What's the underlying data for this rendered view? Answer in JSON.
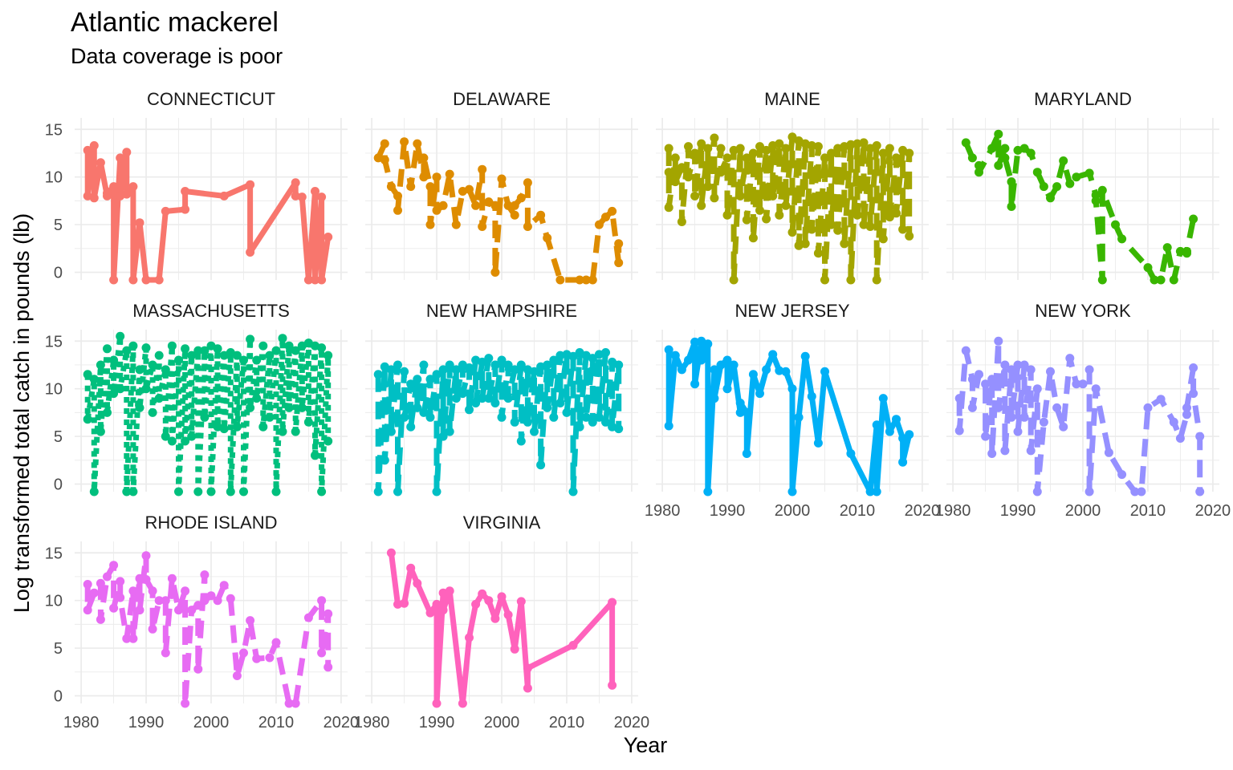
{
  "chart_data": {
    "type": "line",
    "title": "Atlantic mackerel",
    "subtitle": "Data coverage is poor",
    "xlabel": "Year",
    "ylabel": "Log transformed  total catch in pounds (lb)",
    "xlim": [
      1979,
      2021
    ],
    "ylim": [
      -0.8,
      16.2
    ],
    "x_ticks": [
      1980,
      1990,
      2000,
      2010,
      2020
    ],
    "y_ticks": [
      0,
      5,
      10,
      15
    ],
    "grid": true,
    "legend": "none",
    "markers": true,
    "panels": [
      {
        "name": "CONNECTICUT",
        "color": "#F8766D",
        "dash": "solid",
        "x": [
          1981,
          1981,
          1982,
          1982,
          1983,
          1984,
          1984,
          1985,
          1985,
          1986,
          1986,
          1987,
          1987,
          1988,
          1988,
          1989,
          1990,
          1992,
          1993,
          1996,
          1996,
          2002,
          2006,
          2006,
          2013,
          2013,
          2014,
          2015,
          2016,
          2016,
          2017,
          2017,
          2018
        ],
        "y": [
          12.8,
          8.0,
          13.3,
          7.8,
          11.5,
          8.0,
          8.3,
          9.0,
          -0.8,
          12.0,
          8.0,
          12.6,
          8.2,
          9.0,
          -0.8,
          5.2,
          -0.8,
          -0.8,
          6.4,
          6.6,
          8.5,
          8.0,
          9.2,
          2.1,
          9.4,
          8.0,
          7.9,
          -0.8,
          8.5,
          -0.8,
          7.9,
          -0.8,
          3.7
        ]
      },
      {
        "name": "DELAWARE",
        "color": "#DE8C00",
        "dash": "dashed",
        "x": [
          1981,
          1982,
          1982,
          1983,
          1984,
          1984,
          1985,
          1986,
          1987,
          1988,
          1988,
          1989,
          1989,
          1990,
          1990,
          1991,
          1992,
          1993,
          1994,
          1995,
          1996,
          1997,
          1997,
          1998,
          1999,
          1999,
          2000,
          2001,
          2002,
          2002,
          2003,
          2004,
          2004,
          2006,
          2007,
          2009,
          2012,
          2013,
          2014,
          2015,
          2016,
          2017,
          2018,
          2018
        ],
        "y": [
          12.0,
          13.5,
          11.8,
          9.0,
          8.0,
          6.5,
          13.7,
          9.0,
          13.5,
          10.0,
          12.0,
          9.0,
          5.0,
          10.0,
          6.5,
          7.0,
          10.3,
          5.0,
          8.5,
          8.7,
          7.0,
          10.8,
          4.8,
          7.4,
          7.0,
          0.0,
          9.8,
          7.0,
          6.0,
          7.0,
          7.8,
          9.4,
          4.8,
          6.0,
          3.6,
          -0.8,
          -0.8,
          -0.8,
          -0.8,
          5.0,
          5.8,
          6.4,
          1.0,
          3.0
        ]
      },
      {
        "name": "MAINE",
        "color": "#A3A500",
        "dash": "dashed",
        "x": [
          1981,
          1981,
          1981,
          1982,
          1982,
          1983,
          1983,
          1984,
          1984,
          1985,
          1985,
          1986,
          1986,
          1987,
          1987,
          1988,
          1988,
          1989,
          1989,
          1990,
          1990,
          1991,
          1991,
          1992,
          1992,
          1993,
          1993,
          1994,
          1994,
          1995,
          1995,
          1996,
          1996,
          1997,
          1997,
          1998,
          1998,
          1999,
          1999,
          2000,
          2000,
          2001,
          2001,
          2002,
          2002,
          2003,
          2003,
          2004,
          2004,
          2005,
          2005,
          2006,
          2006,
          2007,
          2007,
          2008,
          2008,
          2009,
          2009,
          2010,
          2010,
          2011,
          2011,
          2012,
          2012,
          2013,
          2013,
          2014,
          2014,
          2015,
          2015,
          2016,
          2016,
          2017,
          2017,
          2018,
          2018
        ],
        "y": [
          13.0,
          10.5,
          6.8,
          12.0,
          9.5,
          11.0,
          5.3,
          13.2,
          10.0,
          12.5,
          8.0,
          13.5,
          7.0,
          13.0,
          9.0,
          14.1,
          7.8,
          13.0,
          10.5,
          12.0,
          6.0,
          12.8,
          -0.8,
          13.0,
          8.0,
          12.0,
          5.5,
          12.5,
          3.6,
          13.2,
          6.5,
          12.8,
          5.6,
          13.3,
          8.0,
          13.5,
          6.0,
          13.0,
          7.0,
          14.2,
          4.2,
          13.8,
          2.8,
          13.5,
          3.0,
          13.3,
          4.5,
          13.2,
          2.0,
          12.0,
          -0.8,
          12.5,
          5.0,
          13.0,
          4.4,
          13.2,
          3.0,
          13.4,
          -0.8,
          13.5,
          6.0,
          13.6,
          5.0,
          13.0,
          4.8,
          13.3,
          -0.8,
          12.5,
          3.5,
          13.0,
          5.8,
          12.0,
          6.2,
          12.8,
          4.5,
          12.5,
          3.8
        ]
      },
      {
        "name": "MARYLAND",
        "color": "#39B600",
        "dash": "dashed",
        "x": [
          1982,
          1983,
          1984,
          1984,
          1986,
          1987,
          1987,
          1988,
          1988,
          1989,
          1989,
          1990,
          1991,
          1992,
          1993,
          1994,
          1995,
          1996,
          1997,
          1998,
          1999,
          2001,
          2002,
          2002,
          2003,
          2003,
          2005,
          2006,
          2010,
          2011,
          2012,
          2013,
          2014,
          2015,
          2016,
          2016,
          2017
        ],
        "y": [
          13.6,
          12.0,
          11.2,
          10.5,
          13.0,
          14.5,
          11.2,
          13.0,
          12.0,
          9.5,
          6.9,
          12.8,
          13.0,
          12.5,
          10.5,
          9.0,
          7.8,
          9.0,
          11.7,
          9.3,
          10.0,
          10.4,
          8.1,
          7.5,
          -0.8,
          8.6,
          5.0,
          3.5,
          0.5,
          -0.8,
          -0.8,
          2.6,
          -0.8,
          2.2,
          2.0,
          2.2,
          5.6
        ]
      },
      {
        "name": "MASSACHUSETTS",
        "color": "#00BF7D",
        "dash": "dotted",
        "x": [
          1981,
          1981,
          1982,
          1982,
          1983,
          1983,
          1984,
          1984,
          1985,
          1985,
          1986,
          1986,
          1987,
          1987,
          1988,
          1988,
          1989,
          1989,
          1990,
          1990,
          1991,
          1991,
          1992,
          1992,
          1993,
          1993,
          1994,
          1994,
          1995,
          1995,
          1996,
          1996,
          1997,
          1997,
          1998,
          1998,
          1999,
          1999,
          2000,
          2000,
          2001,
          2001,
          2002,
          2002,
          2003,
          2003,
          2004,
          2004,
          2005,
          2005,
          2006,
          2006,
          2007,
          2007,
          2008,
          2008,
          2009,
          2009,
          2010,
          2010,
          2011,
          2011,
          2012,
          2012,
          2013,
          2013,
          2014,
          2014,
          2015,
          2015,
          2016,
          2016,
          2017,
          2017,
          2018,
          2018
        ],
        "y": [
          11.5,
          6.8,
          11.0,
          -0.8,
          12.5,
          5.5,
          14.2,
          7.5,
          13.0,
          9.5,
          15.5,
          10.0,
          14.0,
          -0.8,
          14.5,
          -0.8,
          12.0,
          8.0,
          14.3,
          10.0,
          12.5,
          7.5,
          13.5,
          9.0,
          12.0,
          5.0,
          14.5,
          4.5,
          13.0,
          -0.8,
          14.2,
          4.5,
          13.5,
          5.0,
          14.0,
          -0.8,
          14.0,
          7.0,
          14.5,
          -0.8,
          14.2,
          6.0,
          13.5,
          5.8,
          13.8,
          -0.8,
          13.5,
          6.0,
          13.0,
          -0.8,
          15.2,
          8.0,
          13.0,
          9.0,
          14.5,
          6.0,
          13.5,
          7.0,
          14.0,
          -0.8,
          15.3,
          5.5,
          14.5,
          8.0,
          14.0,
          5.5,
          14.5,
          8.0,
          14.8,
          6.5,
          14.5,
          3.0,
          14.3,
          -0.8,
          13.5,
          4.5
        ]
      },
      {
        "name": "NEW HAMPSHIRE",
        "color": "#00BFC4",
        "dash": "dashed",
        "x": [
          1981,
          1981,
          1982,
          1982,
          1983,
          1983,
          1984,
          1984,
          1985,
          1985,
          1986,
          1986,
          1987,
          1987,
          1988,
          1988,
          1989,
          1989,
          1990,
          1990,
          1991,
          1991,
          1992,
          1992,
          1993,
          1993,
          1994,
          1994,
          1995,
          1995,
          1996,
          1996,
          1997,
          1997,
          1998,
          1998,
          1999,
          1999,
          2000,
          2000,
          2001,
          2001,
          2002,
          2002,
          2003,
          2003,
          2004,
          2004,
          2005,
          2005,
          2006,
          2006,
          2007,
          2007,
          2008,
          2008,
          2009,
          2009,
          2010,
          2010,
          2011,
          2011,
          2012,
          2012,
          2013,
          2013,
          2014,
          2014,
          2015,
          2015,
          2016,
          2016,
          2017,
          2017,
          2018,
          2018
        ],
        "y": [
          11.5,
          -0.8,
          12.3,
          2.5,
          12.0,
          5.5,
          12.5,
          -0.8,
          11.8,
          7.0,
          10.5,
          6.0,
          11.0,
          8.0,
          12.5,
          7.5,
          11.0,
          7.0,
          11.5,
          -0.8,
          12.0,
          5.0,
          12.5,
          5.5,
          12.0,
          9.0,
          12.5,
          9.5,
          12.2,
          7.8,
          13.0,
          8.5,
          12.8,
          9.0,
          13.2,
          9.0,
          12.5,
          8.5,
          13.0,
          7.0,
          12.5,
          9.0,
          12.0,
          6.5,
          12.5,
          4.5,
          12.0,
          6.5,
          11.8,
          5.5,
          12.3,
          2.0,
          12.5,
          8.0,
          13.0,
          7.0,
          13.5,
          8.5,
          13.6,
          7.5,
          13.4,
          -0.8,
          13.8,
          6.0,
          13.5,
          7.0,
          13.2,
          6.5,
          13.6,
          7.0,
          13.8,
          6.5,
          12.8,
          6.0,
          12.5,
          5.8
        ]
      },
      {
        "name": "NEW JERSEY",
        "color": "#00B0F6",
        "dash": "solid",
        "x": [
          1981,
          1981,
          1982,
          1983,
          1984,
          1985,
          1985,
          1986,
          1986,
          1987,
          1987,
          1988,
          1988,
          1989,
          1990,
          1990,
          1991,
          1992,
          1992,
          1993,
          1993,
          1994,
          1995,
          1996,
          1997,
          1998,
          1999,
          2000,
          2000,
          2001,
          2002,
          2003,
          2004,
          2005,
          2009,
          2012,
          2013,
          2013,
          2014,
          2015,
          2016,
          2017,
          2017,
          2018
        ],
        "y": [
          14.1,
          6.1,
          13.5,
          12.0,
          13.0,
          14.9,
          10.5,
          15.0,
          13.0,
          14.7,
          -0.8,
          12.0,
          9.0,
          12.5,
          13.0,
          10.0,
          12.5,
          7.5,
          8.5,
          7.5,
          3.2,
          11.5,
          9.5,
          12.0,
          13.6,
          11.9,
          11.8,
          10.0,
          -0.8,
          7.0,
          13.4,
          9.2,
          4.3,
          11.8,
          3.2,
          -0.8,
          6.2,
          -0.8,
          9.0,
          5.5,
          6.8,
          4.8,
          2.3,
          5.2
        ]
      },
      {
        "name": "NEW YORK",
        "color": "#9590FF",
        "dash": "dashed",
        "x": [
          1981,
          1981,
          1982,
          1983,
          1983,
          1984,
          1985,
          1985,
          1986,
          1986,
          1987,
          1987,
          1988,
          1988,
          1989,
          1989,
          1990,
          1990,
          1991,
          1991,
          1992,
          1992,
          1993,
          1993,
          1994,
          1995,
          1996,
          1997,
          1998,
          1999,
          2000,
          2001,
          2001,
          2002,
          2004,
          2006,
          2008,
          2009,
          2010,
          2012,
          2014,
          2015,
          2016,
          2016,
          2017,
          2017,
          2018,
          2018
        ],
        "y": [
          9.0,
          5.6,
          14.0,
          11.0,
          8.0,
          11.5,
          10.5,
          5.0,
          11.0,
          3.2,
          15.0,
          8.0,
          12.5,
          3.5,
          12.0,
          7.0,
          12.5,
          5.5,
          12.5,
          7.0,
          12.0,
          3.5,
          10.0,
          -0.8,
          6.5,
          11.8,
          8.0,
          6.0,
          13.2,
          10.5,
          10.5,
          12.0,
          -0.8,
          10.0,
          3.3,
          1.0,
          -0.8,
          -0.8,
          8.0,
          8.9,
          6.5,
          4.8,
          7.3,
          8.0,
          12.2,
          9.5,
          5.0,
          -0.8
        ]
      },
      {
        "name": "RHODE ISLAND",
        "color": "#E76BF3",
        "dash": "dashed",
        "x": [
          1981,
          1981,
          1982,
          1983,
          1983,
          1984,
          1985,
          1985,
          1986,
          1986,
          1987,
          1988,
          1988,
          1989,
          1989,
          1990,
          1990,
          1991,
          1991,
          1992,
          1993,
          1993,
          1994,
          1995,
          1996,
          1996,
          1997,
          1998,
          1998,
          1999,
          1999,
          2000,
          2001,
          2002,
          2003,
          2004,
          2005,
          2006,
          2007,
          2009,
          2010,
          2012,
          2013,
          2015,
          2017,
          2017,
          2018,
          2018
        ],
        "y": [
          11.7,
          9.0,
          10.8,
          11.8,
          8.0,
          12.5,
          13.7,
          9.2,
          12.0,
          10.3,
          6.0,
          11.0,
          6.0,
          12.3,
          9.0,
          14.7,
          12.2,
          11.0,
          7.0,
          10.0,
          10.0,
          4.5,
          12.3,
          9.0,
          11.0,
          -0.8,
          9.0,
          9.5,
          2.8,
          12.7,
          10.0,
          10.5,
          10.0,
          11.6,
          10.2,
          2.1,
          4.5,
          7.9,
          3.9,
          4.0,
          5.6,
          -0.8,
          -0.8,
          8.2,
          10.0,
          4.5,
          8.6,
          3.0
        ]
      },
      {
        "name": "VIRGINIA",
        "color": "#FF62BC",
        "dash": "solid",
        "x": [
          1983,
          1984,
          1985,
          1986,
          1987,
          1989,
          1990,
          1990,
          1991,
          1991,
          1992,
          1994,
          1995,
          1996,
          1997,
          1998,
          1999,
          2000,
          2001,
          2002,
          2003,
          2004,
          2004,
          2011,
          2017,
          2017
        ],
        "y": [
          15.0,
          9.6,
          9.7,
          13.4,
          11.8,
          8.7,
          9.6,
          -0.8,
          10.8,
          9.0,
          11.0,
          -0.8,
          6.1,
          9.6,
          10.7,
          10.0,
          8.1,
          10.4,
          8.5,
          4.9,
          9.9,
          0.8,
          2.9,
          5.3,
          9.8,
          1.1
        ]
      }
    ]
  }
}
